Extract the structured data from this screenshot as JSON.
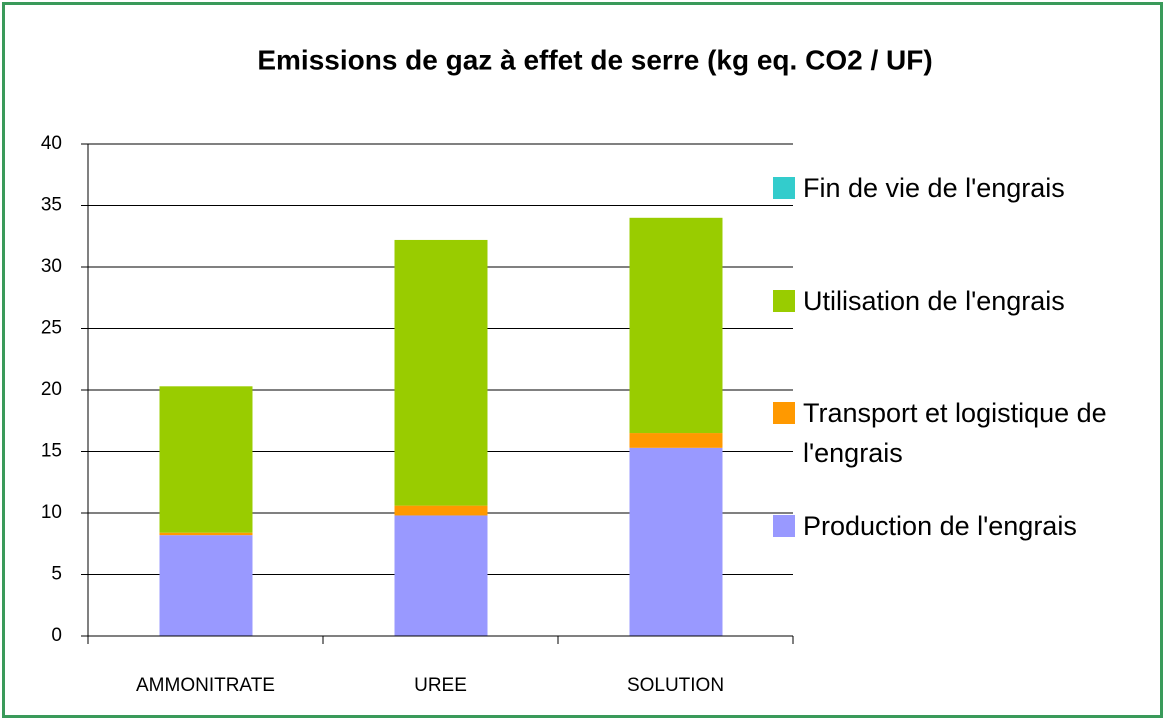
{
  "chart_data": {
    "type": "stacked-bar",
    "title": "Emissions de gaz à effet de serre (kg eq. CO2 / UF)",
    "categories": [
      "AMMONITRATE",
      "UREE",
      "SOLUTION"
    ],
    "series": [
      {
        "name": "Production de l'engrais",
        "color": "#9999ff",
        "values": [
          8.2,
          9.8,
          15.3
        ]
      },
      {
        "name": "Transport et logistique de l'engrais",
        "color": "#ff9900",
        "values": [
          0.2,
          0.8,
          1.2
        ]
      },
      {
        "name": "Utilisation de l'engrais",
        "color": "#99cc00",
        "values": [
          11.9,
          21.6,
          17.5
        ]
      },
      {
        "name": "Fin de vie de l'engrais",
        "color": "#33cccc",
        "values": [
          0,
          0,
          0
        ]
      }
    ],
    "ylim": [
      0,
      40
    ],
    "yticks": [
      0,
      5,
      10,
      15,
      20,
      25,
      30,
      35,
      40
    ],
    "grid": true,
    "legend": "right"
  }
}
